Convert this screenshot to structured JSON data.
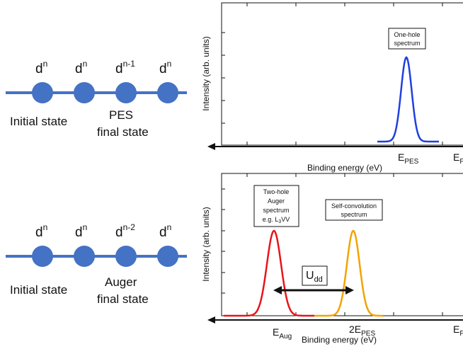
{
  "top_chain": {
    "labels": [
      "d",
      "d",
      "d",
      "d"
    ],
    "superscripts": [
      "n",
      "n",
      "n-1",
      "n"
    ],
    "initial_state": "Initial state",
    "final_state_line1": "PES",
    "final_state_line2": "final state"
  },
  "bottom_chain": {
    "labels": [
      "d",
      "d",
      "d",
      "d"
    ],
    "superscripts": [
      "n",
      "n",
      "n-2",
      "n"
    ],
    "initial_state": "Initial state",
    "final_state_line1": "Auger",
    "final_state_line2": "final state"
  },
  "top_panel": {
    "ylabel": "Intensity (arb. units)",
    "xlabel": "Binding energy (eV)",
    "peak_box_line1": "One-hole",
    "peak_box_line2": "spectrum",
    "tick_epes_main": "E",
    "tick_epes_sub": "PES",
    "tick_ef_main": "E",
    "tick_ef_sub": "F"
  },
  "bottom_panel": {
    "ylabel": "Intensity (arb. units)",
    "xlabel": "Binding energy (eV)",
    "auger_box_line1": "Two-hole",
    "auger_box_line2": "Auger",
    "auger_box_line3": "spectrum",
    "auger_box_line4_pre": "e.g. L",
    "auger_box_line4_sub": "3",
    "auger_box_line4_post": "VV",
    "selfconv_box_line1": "Self-convolution",
    "selfconv_box_line2": "spectrum",
    "udd_main": "U",
    "udd_sub": "dd",
    "tick_eaug_main": "E",
    "tick_eaug_sub": "Aug",
    "tick_2epes_main": "2E",
    "tick_2epes_sub": "PES",
    "tick_ef_main": "E",
    "tick_ef_sub": "F"
  },
  "colors": {
    "chain": "#4472c4",
    "pes_peak": "#1f3fe0",
    "auger_peak": "#e8141b",
    "selfconv_peak": "#f2a400",
    "axis": "#111111"
  },
  "chart_data": [
    {
      "type": "line",
      "xlabel": "Binding energy (eV)",
      "ylabel": "Intensity (arb. units)",
      "series": [
        {
          "peak_at": "E_PES",
          "relative_height": 1.0
        }
      ]
    },
    {
      "type": "line",
      "xlabel": "Binding energy (eV)",
      "ylabel": "Intensity (arb. units)",
      "series": [
        {
          "peak_at": "E_Aug",
          "relative_height": 1.0
        },
        {
          "peak_at": "2E_PES",
          "relative_height": 1.0
        }
      ]
    }
  ]
}
